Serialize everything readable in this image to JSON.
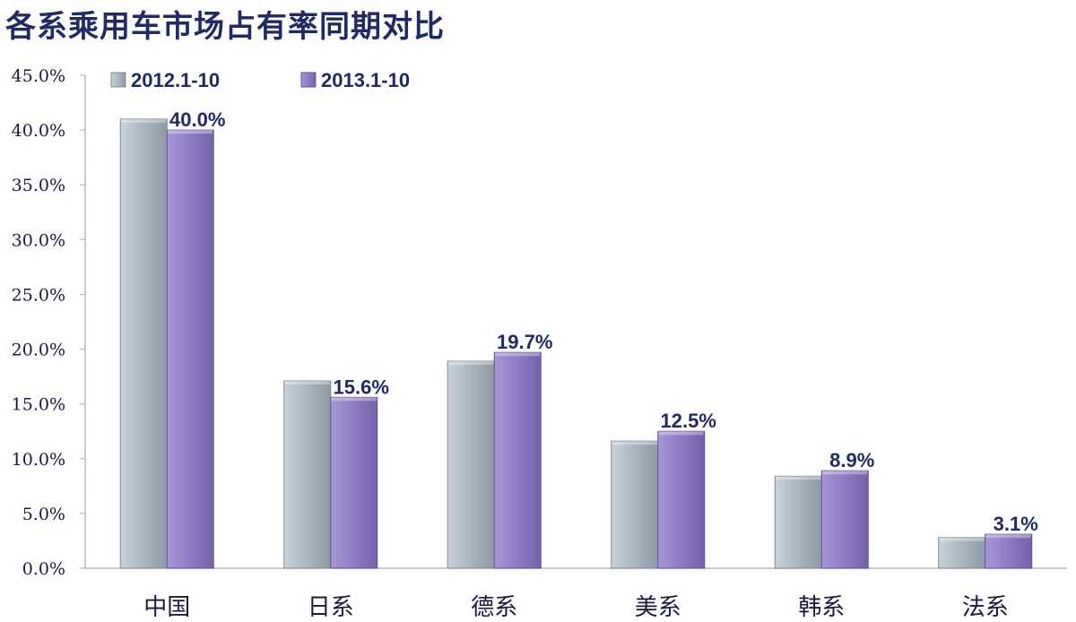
{
  "title": "各系乘用车市场占有率同期对比",
  "chart_data": {
    "type": "bar",
    "title": "各系乘用车市场占有率同期对比",
    "categories": [
      "中国",
      "日系",
      "德系",
      "美系",
      "韩系",
      "法系"
    ],
    "series": [
      {
        "name": "2012.1-10",
        "values": [
          41.0,
          17.1,
          18.9,
          11.6,
          8.4,
          2.8
        ],
        "color": "#aab6bf"
      },
      {
        "name": "2013.1-10",
        "values": [
          40.0,
          15.6,
          19.7,
          12.5,
          8.9,
          3.1
        ],
        "color": "#8e7bc4",
        "data_labels": [
          "40.0%",
          "15.6%",
          "19.7%",
          "12.5%",
          "8.9%",
          "3.1%"
        ]
      }
    ],
    "ylim": [
      0,
      45
    ],
    "yticks": [
      "0.0%",
      "5.0%",
      "10.0%",
      "15.0%",
      "20.0%",
      "25.0%",
      "30.0%",
      "35.0%",
      "40.0%",
      "45.0%"
    ],
    "xlabel": "",
    "ylabel": "",
    "grid": false,
    "legend_position": "top-left"
  }
}
